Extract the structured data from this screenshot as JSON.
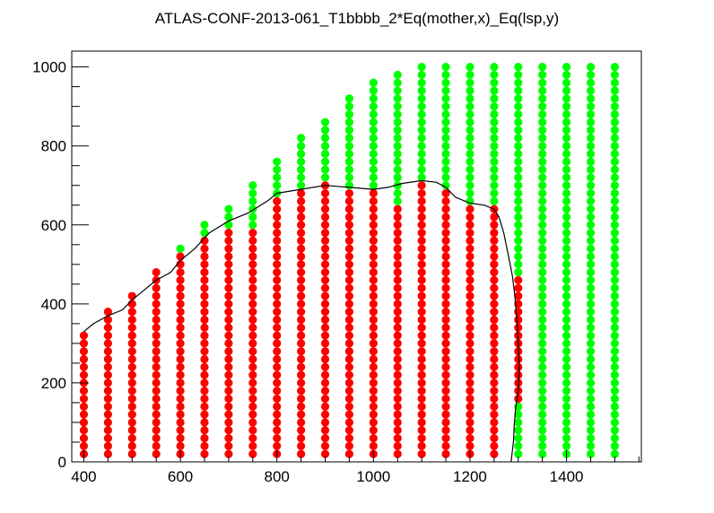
{
  "chart_data": {
    "type": "scatter",
    "title": "ATLAS-CONF-2013-061_T1bbbb_2*Eq(mother,x)_Eq(lsp,y)",
    "xlabel": "",
    "ylabel": "",
    "xlim": [
      375,
      1555
    ],
    "ylim": [
      0,
      1040
    ],
    "x_ticks": [
      400,
      600,
      800,
      1000,
      1200,
      1400
    ],
    "y_ticks": [
      0,
      200,
      400,
      600,
      800,
      1000
    ],
    "grid": false,
    "legend": "none",
    "colors": {
      "excluded": "#ff0000",
      "allowed": "#00ff00",
      "contour": "#000000",
      "axis": "#000000"
    },
    "point_spacing_y": 20,
    "columns": [
      {
        "x": 400,
        "red_max": 320,
        "green_max": null
      },
      {
        "x": 450,
        "red_max": 380,
        "green_max": null
      },
      {
        "x": 500,
        "red_max": 420,
        "green_max": null
      },
      {
        "x": 550,
        "red_max": 480,
        "green_max": null
      },
      {
        "x": 600,
        "red_max": 520,
        "green_max": 540
      },
      {
        "x": 650,
        "red_max": 560,
        "green_max": 600
      },
      {
        "x": 700,
        "red_max": 580,
        "green_max": 640
      },
      {
        "x": 750,
        "red_max": 580,
        "green_max": 700
      },
      {
        "x": 800,
        "red_max": 660,
        "green_max": 760
      },
      {
        "x": 850,
        "red_max": 680,
        "green_max": 820
      },
      {
        "x": 900,
        "red_max": 700,
        "green_max": 860
      },
      {
        "x": 950,
        "red_max": 680,
        "green_max": 920
      },
      {
        "x": 1000,
        "red_max": 680,
        "green_max": 960
      },
      {
        "x": 1050,
        "red_max": 640,
        "green_max": 980
      },
      {
        "x": 1100,
        "red_max": 700,
        "green_max": 1000
      },
      {
        "x": 1150,
        "red_max": 680,
        "green_max": 1000
      },
      {
        "x": 1200,
        "red_max": 640,
        "green_max": 1000
      },
      {
        "x": 1250,
        "red_max": 640,
        "green_max": 1000
      },
      {
        "x": 1300,
        "red_max": 460,
        "green_max": 1000,
        "red_min": 160
      },
      {
        "x": 1350,
        "red_max": null,
        "green_max": 1000
      },
      {
        "x": 1400,
        "red_max": null,
        "green_max": 1000
      },
      {
        "x": 1450,
        "red_max": null,
        "green_max": 1000
      },
      {
        "x": 1500,
        "red_max": null,
        "green_max": 1000
      }
    ],
    "contour": [
      [
        400,
        330
      ],
      [
        420,
        350
      ],
      [
        450,
        370
      ],
      [
        480,
        385
      ],
      [
        500,
        410
      ],
      [
        530,
        440
      ],
      [
        550,
        460
      ],
      [
        580,
        480
      ],
      [
        600,
        510
      ],
      [
        630,
        540
      ],
      [
        660,
        580
      ],
      [
        700,
        610
      ],
      [
        740,
        630
      ],
      [
        780,
        660
      ],
      [
        800,
        680
      ],
      [
        850,
        690
      ],
      [
        900,
        700
      ],
      [
        950,
        695
      ],
      [
        1000,
        690
      ],
      [
        1030,
        695
      ],
      [
        1060,
        705
      ],
      [
        1100,
        712
      ],
      [
        1130,
        708
      ],
      [
        1150,
        695
      ],
      [
        1170,
        670
      ],
      [
        1200,
        655
      ],
      [
        1230,
        650
      ],
      [
        1250,
        640
      ],
      [
        1260,
        620
      ],
      [
        1270,
        580
      ],
      [
        1280,
        520
      ],
      [
        1288,
        470
      ],
      [
        1293,
        420
      ],
      [
        1297,
        360
      ],
      [
        1300,
        300
      ],
      [
        1302,
        240
      ],
      [
        1300,
        180
      ],
      [
        1295,
        140
      ],
      [
        1292,
        100
      ],
      [
        1290,
        50
      ],
      [
        1287,
        20
      ],
      [
        1285,
        0
      ]
    ]
  }
}
